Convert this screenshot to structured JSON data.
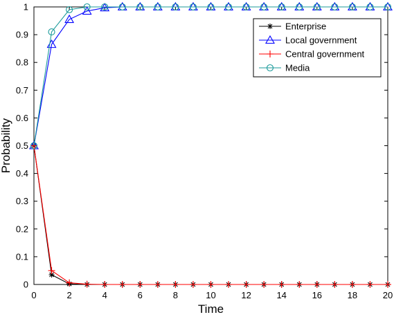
{
  "chart_data": {
    "type": "line",
    "title": "",
    "xlabel": "Time",
    "ylabel": "Probability",
    "xlim": [
      0,
      20
    ],
    "ylim": [
      0,
      1
    ],
    "x_ticks": [
      "0",
      "2",
      "4",
      "6",
      "8",
      "10",
      "12",
      "14",
      "16",
      "18",
      "20"
    ],
    "y_ticks": [
      "0",
      "0.1",
      "0.2",
      "0.3",
      "0.4",
      "0.5",
      "0.6",
      "0.7",
      "0.8",
      "0.9",
      "1"
    ],
    "grid": false,
    "legend_position": "top-right",
    "x": [
      0,
      1,
      2,
      3,
      4,
      5,
      6,
      7,
      8,
      9,
      10,
      11,
      12,
      13,
      14,
      15,
      16,
      17,
      18,
      19,
      20
    ],
    "series": [
      {
        "name": "Enterprise",
        "color": "#000000",
        "marker": "asterisk",
        "values": [
          0.5,
          0.035,
          0.002,
          0,
          0,
          0,
          0,
          0,
          0,
          0,
          0,
          0,
          0,
          0,
          0,
          0,
          0,
          0,
          0,
          0,
          0
        ]
      },
      {
        "name": "Local government",
        "color": "#0000ff",
        "marker": "triangle",
        "values": [
          0.5,
          0.865,
          0.955,
          0.985,
          0.997,
          1,
          1,
          1,
          1,
          1,
          1,
          1,
          1,
          1,
          1,
          1,
          1,
          1,
          1,
          1,
          1
        ]
      },
      {
        "name": "Central government",
        "color": "#ff0000",
        "marker": "plus",
        "values": [
          0.5,
          0.05,
          0.006,
          0.001,
          0,
          0,
          0,
          0,
          0,
          0,
          0,
          0,
          0,
          0,
          0,
          0,
          0,
          0,
          0,
          0,
          0
        ]
      },
      {
        "name": "Media",
        "color": "#1a9a9a",
        "marker": "circle",
        "values": [
          0.5,
          0.91,
          0.99,
          1,
          1,
          1,
          1,
          1,
          1,
          1,
          1,
          1,
          1,
          1,
          1,
          1,
          1,
          1,
          1,
          1,
          1
        ]
      }
    ]
  }
}
